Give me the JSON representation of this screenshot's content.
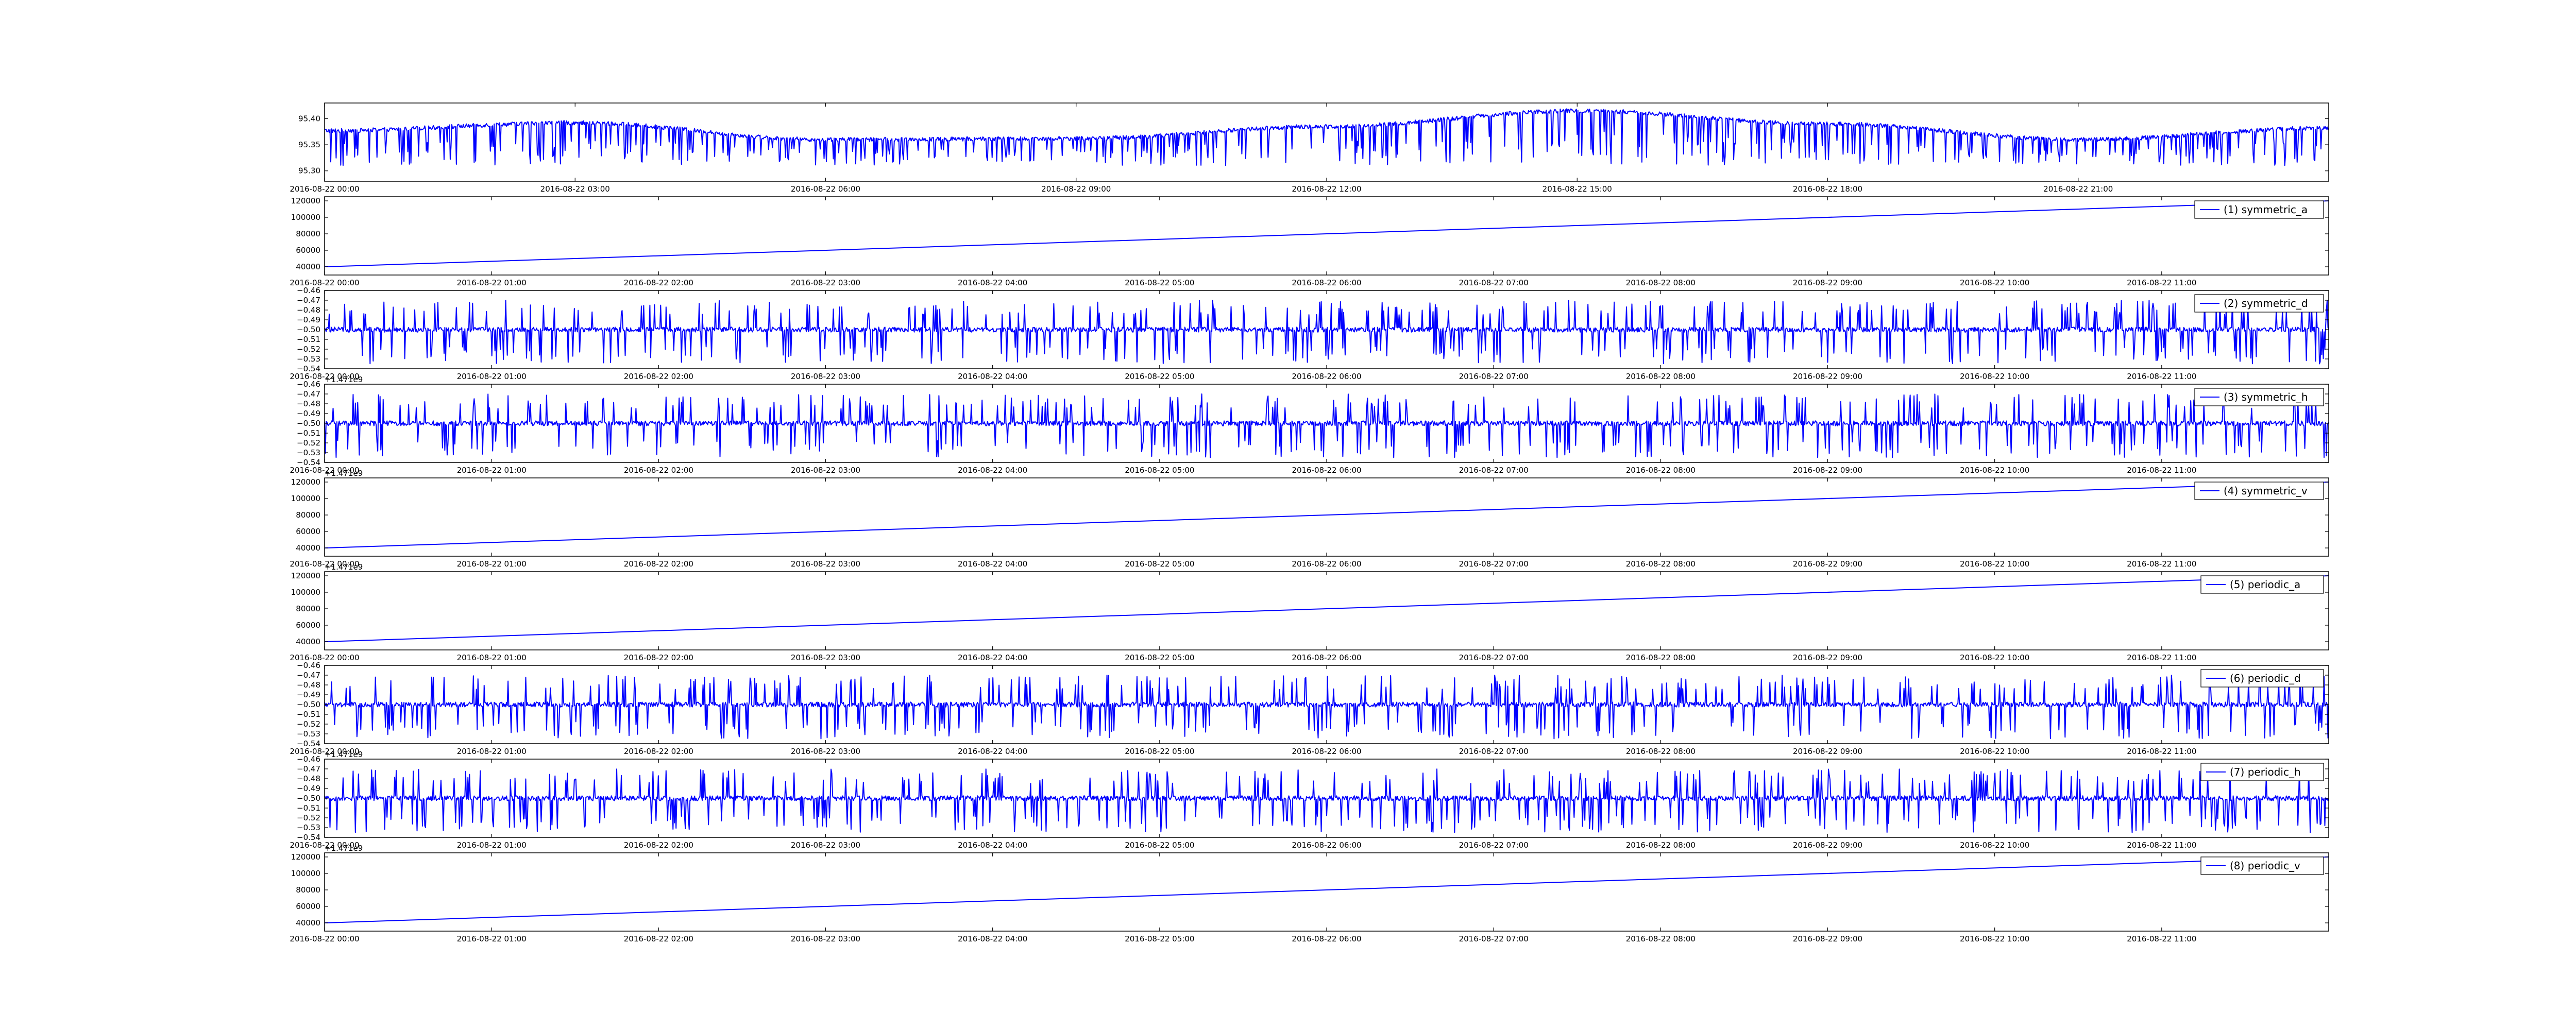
{
  "colors": {
    "line": "#0000ff",
    "axes": "#000000",
    "background": "#ffffff"
  },
  "chart_data": [
    {
      "type": "line",
      "title": "",
      "x_start": "2016-08-22 00:00",
      "x_end": "2016-08-23 00:00",
      "xticks": [
        "2016-08-22 00:00",
        "2016-08-22 03:00",
        "2016-08-22 06:00",
        "2016-08-22 09:00",
        "2016-08-22 12:00",
        "2016-08-22 15:00",
        "2016-08-22 18:00",
        "2016-08-22 21:00"
      ],
      "yticks": [
        "95.30",
        "95.35",
        "95.40"
      ],
      "ylim": [
        95.28,
        95.43
      ],
      "y_offset_text": "",
      "legend": "",
      "signal": {
        "baseline": [
          [
            0,
            95.377
          ],
          [
            3,
            95.392
          ],
          [
            6,
            95.36
          ],
          [
            9,
            95.362
          ],
          [
            12,
            95.385
          ],
          [
            15,
            95.415
          ],
          [
            18,
            95.39
          ],
          [
            21,
            95.36
          ],
          [
            24,
            95.382
          ]
        ],
        "noise": 0.004,
        "spike_min": 95.31
      },
      "grid": false
    },
    {
      "type": "line",
      "title": "",
      "x_start": "2016-08-22 00:00",
      "x_end": "2016-08-22 12:00",
      "xticks": [
        "2016-08-22 00:00",
        "2016-08-22 01:00",
        "2016-08-22 02:00",
        "2016-08-22 03:00",
        "2016-08-22 04:00",
        "2016-08-22 05:00",
        "2016-08-22 06:00",
        "2016-08-22 07:00",
        "2016-08-22 08:00",
        "2016-08-22 09:00",
        "2016-08-22 10:00",
        "2016-08-22 11:00"
      ],
      "yticks": [
        "40000",
        "60000",
        "80000",
        "100000",
        "120000"
      ],
      "ylim": [
        30000,
        125000
      ],
      "y_offset_text": "",
      "legend": "(1) symmetric_a",
      "signal": {
        "linear": [
          [
            0,
            40000
          ],
          [
            12,
            120000
          ]
        ]
      },
      "grid": false
    },
    {
      "type": "line",
      "title": "",
      "x_start": "2016-08-22 00:00",
      "x_end": "2016-08-22 12:00",
      "xticks": [
        "2016-08-22 00:00",
        "2016-08-22 01:00",
        "2016-08-22 02:00",
        "2016-08-22 03:00",
        "2016-08-22 04:00",
        "2016-08-22 05:00",
        "2016-08-22 06:00",
        "2016-08-22 07:00",
        "2016-08-22 08:00",
        "2016-08-22 09:00",
        "2016-08-22 10:00",
        "2016-08-22 11:00"
      ],
      "yticks": [
        "−0.54",
        "−0.53",
        "−0.52",
        "−0.51",
        "−0.50",
        "−0.49",
        "−0.48",
        "−0.47",
        "−0.46"
      ],
      "ylim": [
        -0.54,
        -0.46
      ],
      "y_offset_text": "",
      "legend": "(2) symmetric_d",
      "signal": {
        "baseline": [
          [
            0,
            -0.5
          ],
          [
            12,
            -0.5
          ]
        ],
        "noise": 0.0025,
        "spike_up": -0.47,
        "spike_down": -0.535
      },
      "grid": false
    },
    {
      "type": "line",
      "title": "",
      "x_start": "2016-08-22 00:00",
      "x_end": "2016-08-22 12:00",
      "xticks": [
        "2016-08-22 00:00",
        "2016-08-22 01:00",
        "2016-08-22 02:00",
        "2016-08-22 03:00",
        "2016-08-22 04:00",
        "2016-08-22 05:00",
        "2016-08-22 06:00",
        "2016-08-22 07:00",
        "2016-08-22 08:00",
        "2016-08-22 09:00",
        "2016-08-22 10:00",
        "2016-08-22 11:00"
      ],
      "yticks": [
        "−0.54",
        "−0.53",
        "−0.52",
        "−0.51",
        "−0.50",
        "−0.49",
        "−0.48",
        "−0.47",
        "−0.46"
      ],
      "ylim": [
        -0.54,
        -0.46
      ],
      "y_offset_text": "+1.471e9",
      "legend": "(3) symmetric_h",
      "signal": {
        "baseline": [
          [
            0,
            -0.5
          ],
          [
            12,
            -0.5
          ]
        ],
        "noise": 0.0025,
        "spike_up": -0.47,
        "spike_down": -0.535
      },
      "grid": false
    },
    {
      "type": "line",
      "title": "",
      "x_start": "2016-08-22 00:00",
      "x_end": "2016-08-22 12:00",
      "xticks": [
        "2016-08-22 00:00",
        "2016-08-22 01:00",
        "2016-08-22 02:00",
        "2016-08-22 03:00",
        "2016-08-22 04:00",
        "2016-08-22 05:00",
        "2016-08-22 06:00",
        "2016-08-22 07:00",
        "2016-08-22 08:00",
        "2016-08-22 09:00",
        "2016-08-22 10:00",
        "2016-08-22 11:00"
      ],
      "yticks": [
        "40000",
        "60000",
        "80000",
        "100000",
        "120000"
      ],
      "ylim": [
        30000,
        125000
      ],
      "y_offset_text": "+1.471e9",
      "legend": "(4) symmetric_v",
      "signal": {
        "linear": [
          [
            0,
            40000
          ],
          [
            12,
            120000
          ]
        ]
      },
      "grid": false
    },
    {
      "type": "line",
      "title": "",
      "x_start": "2016-08-22 00:00",
      "x_end": "2016-08-22 12:00",
      "xticks": [
        "2016-08-22 00:00",
        "2016-08-22 01:00",
        "2016-08-22 02:00",
        "2016-08-22 03:00",
        "2016-08-22 04:00",
        "2016-08-22 05:00",
        "2016-08-22 06:00",
        "2016-08-22 07:00",
        "2016-08-22 08:00",
        "2016-08-22 09:00",
        "2016-08-22 10:00",
        "2016-08-22 11:00"
      ],
      "yticks": [
        "40000",
        "60000",
        "80000",
        "100000",
        "120000"
      ],
      "ylim": [
        30000,
        125000
      ],
      "y_offset_text": "+1.471e9",
      "legend": "(5) periodic_a",
      "signal": {
        "linear": [
          [
            0,
            40000
          ],
          [
            12,
            120000
          ]
        ]
      },
      "grid": false
    },
    {
      "type": "line",
      "title": "",
      "x_start": "2016-08-22 00:00",
      "x_end": "2016-08-22 12:00",
      "xticks": [
        "2016-08-22 00:00",
        "2016-08-22 01:00",
        "2016-08-22 02:00",
        "2016-08-22 03:00",
        "2016-08-22 04:00",
        "2016-08-22 05:00",
        "2016-08-22 06:00",
        "2016-08-22 07:00",
        "2016-08-22 08:00",
        "2016-08-22 09:00",
        "2016-08-22 10:00",
        "2016-08-22 11:00"
      ],
      "yticks": [
        "−0.54",
        "−0.53",
        "−0.52",
        "−0.51",
        "−0.50",
        "−0.49",
        "−0.48",
        "−0.47",
        "−0.46"
      ],
      "ylim": [
        -0.54,
        -0.46
      ],
      "y_offset_text": "",
      "legend": "(6) periodic_d",
      "signal": {
        "baseline": [
          [
            0,
            -0.5
          ],
          [
            12,
            -0.5
          ]
        ],
        "noise": 0.0025,
        "spike_up": -0.47,
        "spike_down": -0.535
      },
      "grid": false
    },
    {
      "type": "line",
      "title": "",
      "x_start": "2016-08-22 00:00",
      "x_end": "2016-08-22 12:00",
      "xticks": [
        "2016-08-22 00:00",
        "2016-08-22 01:00",
        "2016-08-22 02:00",
        "2016-08-22 03:00",
        "2016-08-22 04:00",
        "2016-08-22 05:00",
        "2016-08-22 06:00",
        "2016-08-22 07:00",
        "2016-08-22 08:00",
        "2016-08-22 09:00",
        "2016-08-22 10:00",
        "2016-08-22 11:00"
      ],
      "yticks": [
        "−0.54",
        "−0.53",
        "−0.52",
        "−0.51",
        "−0.50",
        "−0.49",
        "−0.48",
        "−0.47",
        "−0.46"
      ],
      "ylim": [
        -0.54,
        -0.46
      ],
      "y_offset_text": "+1.471e9",
      "legend": "(7) periodic_h",
      "signal": {
        "baseline": [
          [
            0,
            -0.5
          ],
          [
            12,
            -0.5
          ]
        ],
        "noise": 0.0025,
        "spike_up": -0.47,
        "spike_down": -0.535
      },
      "grid": false
    },
    {
      "type": "line",
      "title": "",
      "x_start": "2016-08-22 00:00",
      "x_end": "2016-08-22 12:00",
      "xticks": [
        "2016-08-22 00:00",
        "2016-08-22 01:00",
        "2016-08-22 02:00",
        "2016-08-22 03:00",
        "2016-08-22 04:00",
        "2016-08-22 05:00",
        "2016-08-22 06:00",
        "2016-08-22 07:00",
        "2016-08-22 08:00",
        "2016-08-22 09:00",
        "2016-08-22 10:00",
        "2016-08-22 11:00"
      ],
      "yticks": [
        "40000",
        "60000",
        "80000",
        "100000",
        "120000"
      ],
      "ylim": [
        30000,
        125000
      ],
      "y_offset_text": "+1.471e9",
      "legend": "(8) periodic_v",
      "signal": {
        "linear": [
          [
            0,
            40000
          ],
          [
            12,
            120000
          ]
        ]
      },
      "grid": false
    }
  ]
}
